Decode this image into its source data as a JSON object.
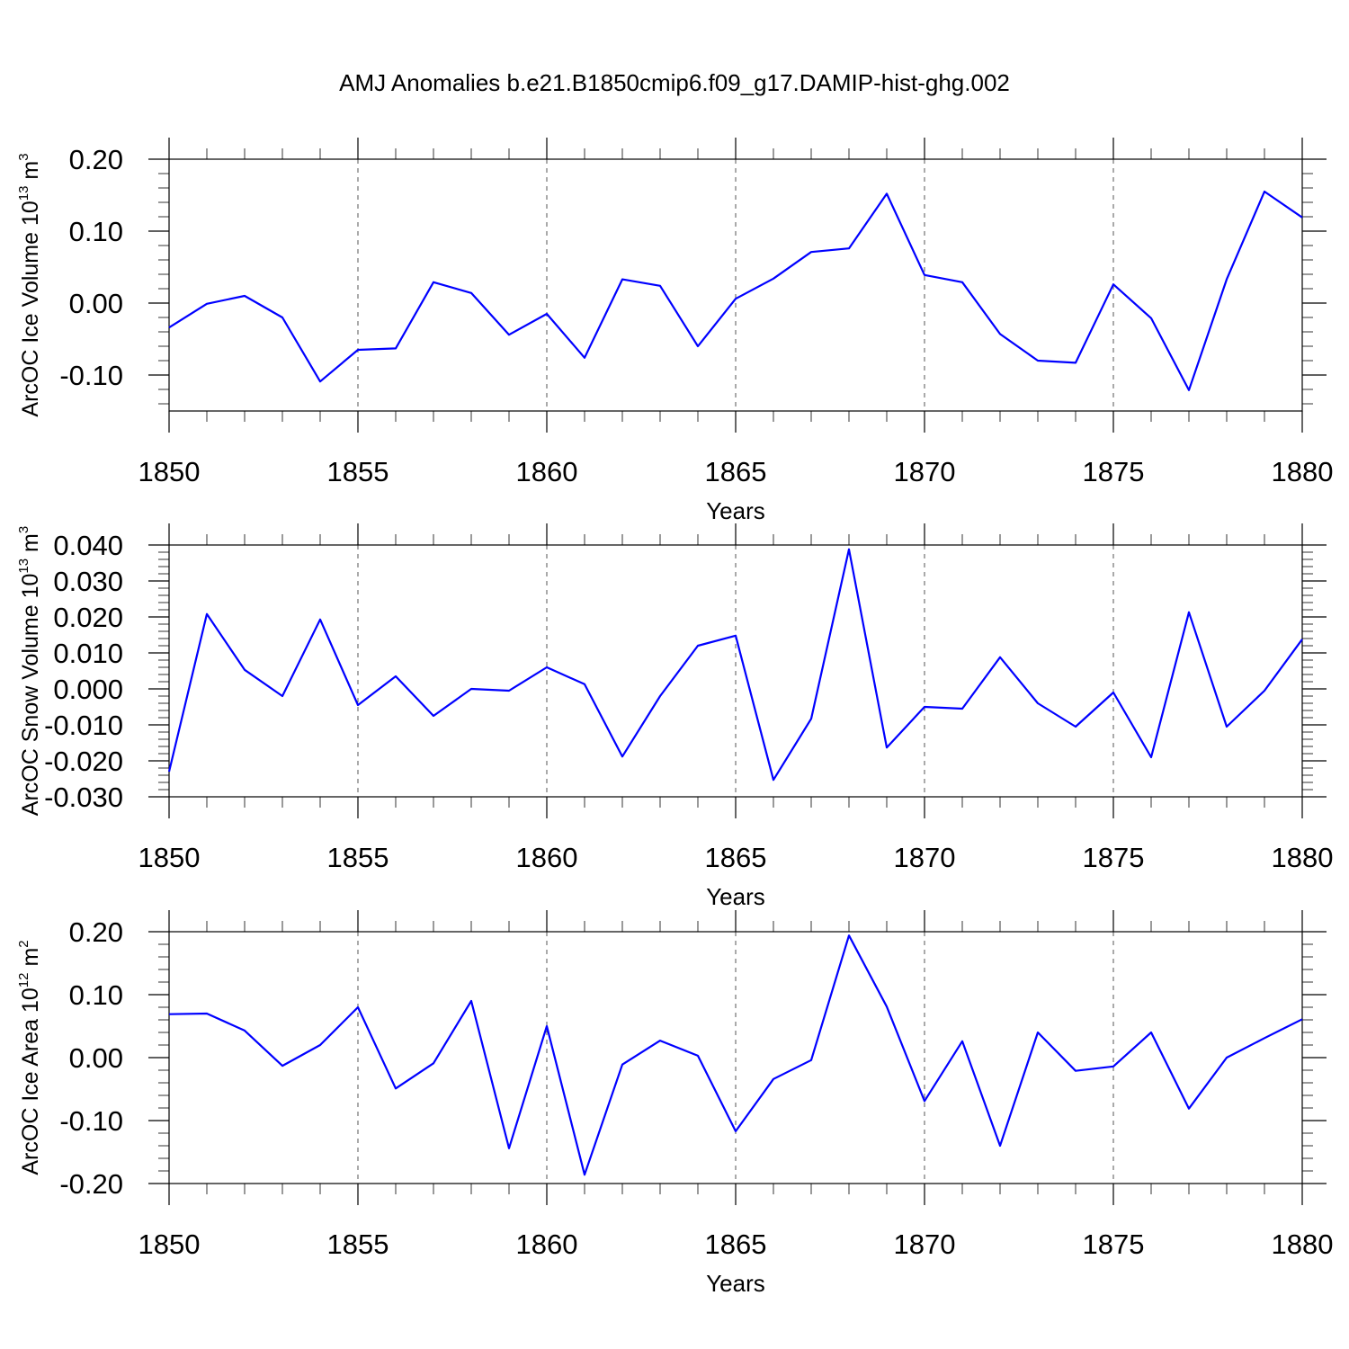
{
  "chart_data": [
    {
      "type": "line",
      "title": "AMJ Anomalies b.e21.B1850cmip6.f09_g17.DAMIP-hist-ghg.002",
      "ylabel": [
        "ArcOC Ice Volume 10",
        "13",
        " m",
        "3"
      ],
      "xlabel": "Years",
      "x": [
        1850,
        1851,
        1852,
        1853,
        1854,
        1855,
        1856,
        1857,
        1858,
        1859,
        1860,
        1861,
        1862,
        1863,
        1864,
        1865,
        1866,
        1867,
        1868,
        1869,
        1870,
        1871,
        1872,
        1873,
        1874,
        1875,
        1876,
        1877,
        1878,
        1879,
        1880
      ],
      "xlim": [
        1850,
        1880
      ],
      "xticks": [
        1850,
        1855,
        1860,
        1865,
        1870,
        1875,
        1880
      ],
      "ylim": [
        -0.15,
        0.2
      ],
      "yticks": [
        {
          "value": -0.1,
          "label": "-0.10"
        },
        {
          "value": 0,
          "label": "0.00"
        },
        {
          "value": 0.1,
          "label": "0.10"
        },
        {
          "value": 0.2,
          "label": "0.20"
        }
      ],
      "grid": true,
      "series": [
        {
          "color": "#0000ff",
          "values": [
            -0.034,
            -0.001,
            0.01,
            -0.02,
            -0.109,
            -0.065,
            -0.063,
            0.029,
            0.014,
            -0.044,
            -0.015,
            -0.076,
            0.033,
            0.024,
            -0.06,
            0.006,
            0.034,
            0.071,
            0.076,
            0.152,
            0.039,
            0.029,
            -0.043,
            -0.08,
            -0.083,
            0.026,
            -0.021,
            -0.121,
            0.033,
            0.155,
            0.119
          ]
        }
      ]
    },
    {
      "type": "line",
      "ylabel": [
        "ArcOC Snow Volume 10",
        "13",
        " m",
        "3"
      ],
      "xlabel": "Years",
      "x": [
        1850,
        1851,
        1852,
        1853,
        1854,
        1855,
        1856,
        1857,
        1858,
        1859,
        1860,
        1861,
        1862,
        1863,
        1864,
        1865,
        1866,
        1867,
        1868,
        1869,
        1870,
        1871,
        1872,
        1873,
        1874,
        1875,
        1876,
        1877,
        1878,
        1879,
        1880
      ],
      "xlim": [
        1850,
        1880
      ],
      "xticks": [
        1850,
        1855,
        1860,
        1865,
        1870,
        1875,
        1880
      ],
      "ylim": [
        -0.03,
        0.04
      ],
      "yticks": [
        {
          "value": -0.03,
          "label": "-0.030"
        },
        {
          "value": -0.02,
          "label": "-0.020"
        },
        {
          "value": -0.01,
          "label": "-0.010"
        },
        {
          "value": 0,
          "label": "0.000"
        },
        {
          "value": 0.01,
          "label": "0.010"
        },
        {
          "value": 0.02,
          "label": "0.020"
        },
        {
          "value": 0.03,
          "label": "0.030"
        },
        {
          "value": 0.04,
          "label": "0.040"
        }
      ],
      "grid": true,
      "series": [
        {
          "color": "#0000ff",
          "values": [
            -0.023,
            0.0208,
            0.0053,
            -0.002,
            0.0193,
            -0.0045,
            0.0035,
            -0.0075,
            0.0,
            -0.0005,
            0.006,
            0.0013,
            -0.0188,
            -0.002,
            0.012,
            0.0148,
            -0.0253,
            -0.0083,
            0.0388,
            -0.0163,
            -0.005,
            -0.0055,
            0.0088,
            -0.004,
            -0.0105,
            -0.001,
            -0.019,
            0.0213,
            -0.0105,
            -0.0005,
            0.0138
          ]
        }
      ]
    },
    {
      "type": "line",
      "ylabel": [
        "ArcOC Ice Area 10",
        "12",
        " m",
        "2"
      ],
      "xlabel": "Years",
      "x": [
        1850,
        1851,
        1852,
        1853,
        1854,
        1855,
        1856,
        1857,
        1858,
        1859,
        1860,
        1861,
        1862,
        1863,
        1864,
        1865,
        1866,
        1867,
        1868,
        1869,
        1870,
        1871,
        1872,
        1873,
        1874,
        1875,
        1876,
        1877,
        1878,
        1879,
        1880
      ],
      "xlim": [
        1850,
        1880
      ],
      "xticks": [
        1850,
        1855,
        1860,
        1865,
        1870,
        1875,
        1880
      ],
      "ylim": [
        -0.2,
        0.2
      ],
      "yticks": [
        {
          "value": -0.2,
          "label": "-0.20"
        },
        {
          "value": -0.1,
          "label": "-0.10"
        },
        {
          "value": 0,
          "label": "0.00"
        },
        {
          "value": 0.1,
          "label": "0.10"
        },
        {
          "value": 0.2,
          "label": "0.20"
        }
      ],
      "grid": true,
      "series": [
        {
          "color": "#0000ff",
          "values": [
            0.069,
            0.07,
            0.043,
            -0.013,
            0.02,
            0.08,
            -0.049,
            -0.009,
            0.09,
            -0.144,
            0.05,
            -0.186,
            -0.011,
            0.027,
            0.003,
            -0.117,
            -0.034,
            -0.004,
            0.194,
            0.081,
            -0.069,
            0.026,
            -0.14,
            0.04,
            -0.021,
            -0.014,
            0.04,
            -0.081,
            0.0,
            0.031,
            0.061
          ]
        }
      ]
    }
  ]
}
